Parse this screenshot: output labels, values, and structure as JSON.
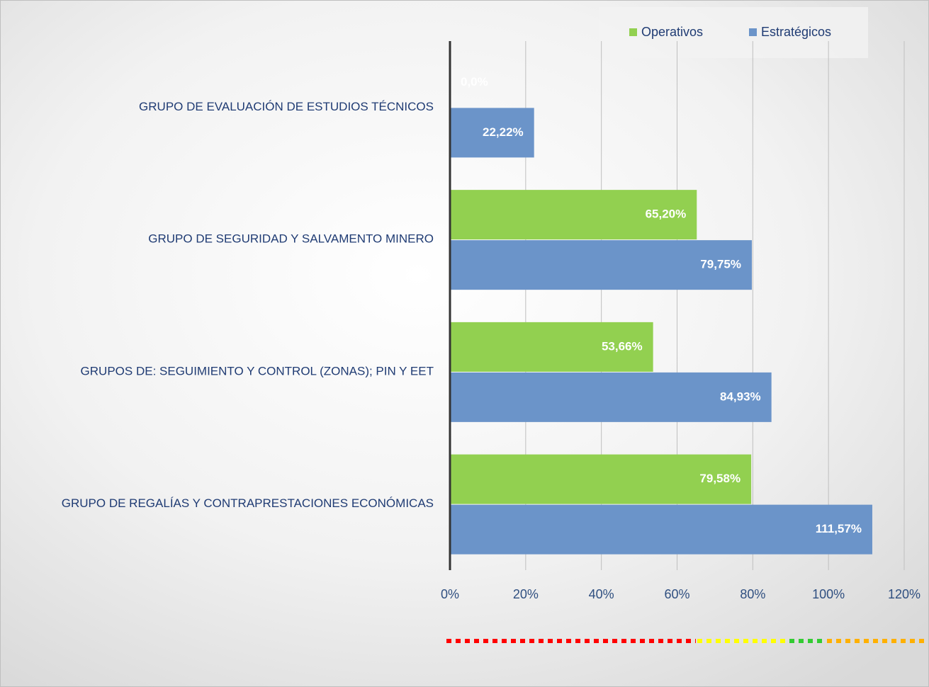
{
  "chart_data": {
    "type": "barh",
    "categories": [
      "GRUPO DE EVALUACIÓN DE ESTUDIOS TÉCNICOS",
      "GRUPO DE SEGURIDAD Y SALVAMENTO MINERO",
      "GRUPOS DE: SEGUIMIENTO Y CONTROL (ZONAS); PIN Y EET",
      "GRUPO DE REGALÍAS Y CONTRAPRESTACIONES ECONÓMICAS"
    ],
    "series": [
      {
        "name": "Operativos",
        "color": "#92d050",
        "values": [
          0,
          65.2,
          53.66,
          79.58
        ],
        "value_labels": [
          "0,0%",
          "65,20%",
          "53,66%",
          "79,58%"
        ]
      },
      {
        "name": "Estratégicos",
        "color": "#6b94c9",
        "values": [
          22.22,
          79.75,
          84.93,
          111.57
        ],
        "value_labels": [
          "22,22%",
          "79,75%",
          "84,93%",
          "111,57%"
        ]
      }
    ],
    "xlim": [
      0,
      120
    ],
    "xticks": [
      {
        "value": 0,
        "label": "0%"
      },
      {
        "value": 20,
        "label": "20%"
      },
      {
        "value": 40,
        "label": "40%"
      },
      {
        "value": 60,
        "label": "60%"
      },
      {
        "value": 80,
        "label": "80%"
      },
      {
        "value": 100,
        "label": "100%"
      },
      {
        "value": 120,
        "label": "120%"
      }
    ],
    "grid": true,
    "legend": "top-right"
  }
}
